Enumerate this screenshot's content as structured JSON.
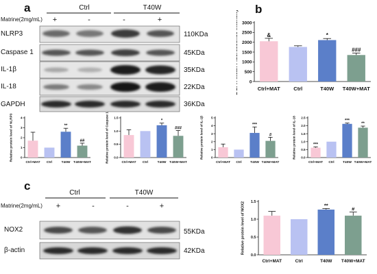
{
  "panel_letters": {
    "a": "a",
    "b": "b",
    "c": "c"
  },
  "panel_a": {
    "group_ctrl": "Ctrl",
    "group_t40w": "T40W",
    "treatment_label": "Matrine(2mg/mL)",
    "treatment_signs": [
      "+",
      "-",
      "-",
      "+"
    ],
    "bands": [
      {
        "name": "NLRP3",
        "kda": "110KDa"
      },
      {
        "name": "Caspase 1",
        "kda": "45KDa"
      },
      {
        "name": "IL-1β",
        "kda": "35KDa"
      },
      {
        "name": "IL-18",
        "kda": "22KDa"
      },
      {
        "name": "GAPDH",
        "kda": "36KDa"
      }
    ]
  },
  "panel_c": {
    "group_ctrl": "Ctrl",
    "group_t40w": "T40W",
    "treatment_label": "Matrine(2mg/mL)",
    "treatment_signs": [
      "+",
      "-",
      "-",
      "+"
    ],
    "bands": [
      {
        "name": "NOX2",
        "kda": "55KDa"
      },
      {
        "name": "β-actin",
        "kda": "42KDa"
      }
    ]
  },
  "colors": {
    "ctrl_mat": "#f8c8d6",
    "ctrl": "#b9c2f2",
    "t40w": "#5b7fc9",
    "t40w_mat": "#7d9f8f"
  },
  "chart_data": [
    {
      "id": "dcfh",
      "type": "bar",
      "categories": [
        "Ctrl+MAT",
        "Ctrl",
        "T40W",
        "T40W+MAT"
      ],
      "values": [
        2050,
        1760,
        2110,
        1350
      ],
      "errors": [
        150,
        60,
        80,
        100
      ],
      "ylabel": "DCFH Mean Fluorescence Intensity",
      "ylim": [
        0,
        3000
      ],
      "yticks": [
        0,
        500,
        1000,
        1500,
        2000,
        2500,
        3000
      ],
      "annotations": [
        "&",
        "",
        "*",
        "###"
      ]
    },
    {
      "id": "nlrp3",
      "type": "bar",
      "categories": [
        "Ctrl+MAT",
        "Ctrl",
        "T40W",
        "T40W+MAT"
      ],
      "values": [
        1.7,
        1.0,
        2.6,
        1.2
      ],
      "errors": [
        0.85,
        0,
        0.35,
        0.25
      ],
      "ylabel": "Relative protein level of NLRP3",
      "ylim": [
        0,
        4
      ],
      "yticks": [
        0,
        1,
        2,
        3,
        4
      ],
      "annotations": [
        "",
        "",
        "**",
        "##"
      ]
    },
    {
      "id": "casp1",
      "type": "bar",
      "categories": [
        "Ctrl+MAT",
        "Ctrl",
        "T40W",
        "T40W+MAT"
      ],
      "values": [
        0.85,
        1.0,
        1.22,
        0.82
      ],
      "errors": [
        0.2,
        0,
        0.08,
        0.2
      ],
      "ylabel": "Relative protein level of Caspase 1",
      "ylim": [
        0,
        1.5
      ],
      "yticks": [
        0.0,
        0.5,
        1.0,
        1.5
      ],
      "annotations": [
        "",
        "",
        "*",
        "###"
      ]
    },
    {
      "id": "il1b",
      "type": "bar",
      "categories": [
        "Ctrl+MAT",
        "Ctrl",
        "T40W",
        "T40W+MAT"
      ],
      "values": [
        1.3,
        1.0,
        3.1,
        2.1
      ],
      "errors": [
        0.4,
        0,
        0.75,
        0.45
      ],
      "ylabel": "Relative protein level of IL-1β",
      "ylim": [
        0,
        5
      ],
      "yticks": [
        0,
        1,
        2,
        3,
        4,
        5
      ],
      "annotations": [
        "",
        "",
        "***",
        "#"
      ]
    },
    {
      "id": "il18",
      "type": "bar",
      "categories": [
        "Ctrl+MAT",
        "Ctrl",
        "T40W",
        "T40W+MAT"
      ],
      "values": [
        0.62,
        1.0,
        2.12,
        1.88
      ],
      "errors": [
        0.05,
        0,
        0.05,
        0.1
      ],
      "ylabel": "Relative protein level of IL-18",
      "ylim": [
        0,
        2.5
      ],
      "yticks": [
        0.0,
        0.5,
        1.0,
        1.5,
        2.0,
        2.5
      ],
      "annotations": [
        "***",
        "",
        "***",
        "**"
      ]
    },
    {
      "id": "nox2",
      "type": "bar",
      "categories": [
        "Ctrl+MAT",
        "Ctrl",
        "T40W",
        "T40W+MAT"
      ],
      "values": [
        1.1,
        1.0,
        1.27,
        1.1
      ],
      "errors": [
        0.12,
        0,
        0.03,
        0.1
      ],
      "ylabel": "Relative protein level of NOX2",
      "ylim": [
        0,
        1.5
      ],
      "yticks": [
        0.0,
        0.5,
        1.0,
        1.5
      ],
      "annotations": [
        "",
        "",
        "**",
        "#"
      ]
    }
  ]
}
